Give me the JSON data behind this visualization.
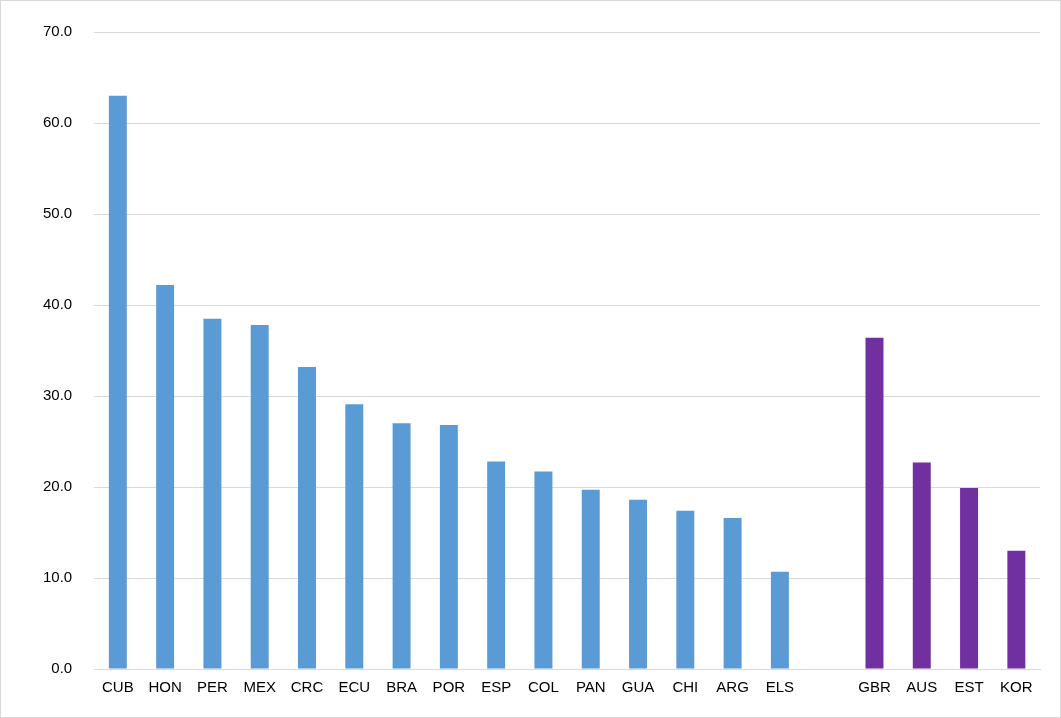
{
  "chart_data": {
    "type": "bar",
    "categories": [
      "CUB",
      "HON",
      "PER",
      "MEX",
      "CRC",
      "ECU",
      "BRA",
      "POR",
      "ESP",
      "COL",
      "PAN",
      "GUA",
      "CHI",
      "ARG",
      "ELS",
      null,
      "GBR",
      "AUS",
      "EST",
      "KOR"
    ],
    "values": [
      63.0,
      42.2,
      38.5,
      37.8,
      33.2,
      29.1,
      27.0,
      26.8,
      22.8,
      21.7,
      19.7,
      18.6,
      17.4,
      16.6,
      10.7,
      null,
      36.4,
      22.7,
      19.9,
      13.0
    ],
    "colors": [
      "#5b9bd5",
      "#5b9bd5",
      "#5b9bd5",
      "#5b9bd5",
      "#5b9bd5",
      "#5b9bd5",
      "#5b9bd5",
      "#5b9bd5",
      "#5b9bd5",
      "#5b9bd5",
      "#5b9bd5",
      "#5b9bd5",
      "#5b9bd5",
      "#5b9bd5",
      "#5b9bd5",
      "#5b9bd5",
      "#7030a0",
      "#7030a0",
      "#7030a0",
      "#7030a0"
    ],
    "ylim": [
      0,
      70
    ],
    "yticks": [
      {
        "value": 0,
        "label": "0.0"
      },
      {
        "value": 10,
        "label": "10.0"
      },
      {
        "value": 20,
        "label": "20.0"
      },
      {
        "value": 30,
        "label": "30.0"
      },
      {
        "value": 40,
        "label": "40.0"
      },
      {
        "value": 50,
        "label": "50.0"
      },
      {
        "value": 60,
        "label": "60.0"
      },
      {
        "value": 70,
        "label": "70.0"
      }
    ],
    "grid": "y",
    "legend": false
  }
}
